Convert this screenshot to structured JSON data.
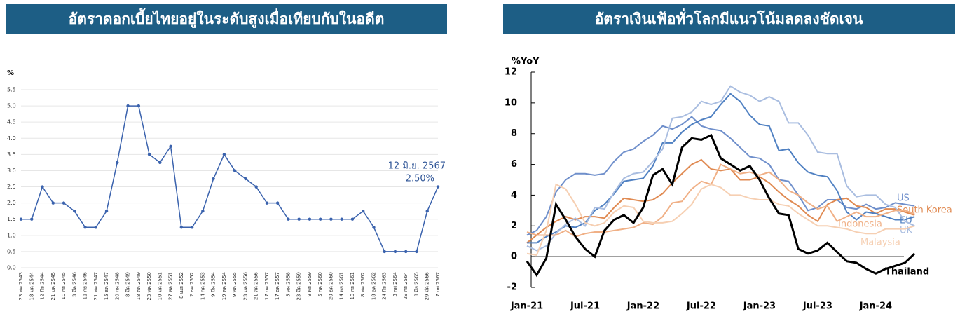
{
  "chart_data": [
    {
      "type": "line",
      "title": "อัตราดอกเบี้ยไทยอยู่ในระดับสูงเมื่อเทียบกับในอดีต",
      "ylabel": "%",
      "categories": [
        "23 พค 2543",
        "18 มค 2544",
        "12 มิย 2544",
        "21 มค 2545",
        "10 กย 2545",
        "3 มีค 2546",
        "11 กย 2546",
        "21 พค 2547",
        "15 ธค 2547",
        "20 กค 2548",
        "8 มีค 2549",
        "18 ตค 2549",
        "23 พค 2550",
        "10 มค 2551",
        "27 สค 2551",
        "8 เมย 2552",
        "2 ธค 2552",
        "14 กค 2553",
        "9 มีค 2554",
        "19 ตค 2554",
        "9 พค 2555",
        "23 มค 2556",
        "21 สค 2556",
        "17 กค 2557",
        "17 ธค 2557",
        "5 สค 2558",
        "23 มีค 2559",
        "9 พย 2559",
        "5 กค 2560",
        "20 ธค 2560",
        "14 พย 2561",
        "19 กย 2561",
        "8 พค 2562",
        "18 ธค 2562",
        "24 มิย 2563",
        "3 กพ 2564",
        "29 กย 2564",
        "8 มิย 2565",
        "29 มีค 2566",
        "7 กพ 2567"
      ],
      "values": [
        1.5,
        1.5,
        2.5,
        2.0,
        2.0,
        1.75,
        1.25,
        1.25,
        1.75,
        3.25,
        5.0,
        5.0,
        3.5,
        3.25,
        3.75,
        1.25,
        1.25,
        1.75,
        2.75,
        3.5,
        3.0,
        2.75,
        2.5,
        2.0,
        2.0,
        1.5,
        1.5,
        1.5,
        1.5,
        1.5,
        1.5,
        1.5,
        1.75,
        1.25,
        0.5,
        0.5,
        0.5,
        0.5,
        1.75,
        2.5
      ],
      "color": "#3a62ad",
      "ylim": [
        0,
        5.5
      ],
      "yticks": [
        {
          "value": 0,
          "label": "0.0"
        },
        0.5,
        {
          "value": 1,
          "label": "1.0"
        },
        1.5,
        {
          "value": 2,
          "label": "2.0"
        },
        2.5,
        {
          "value": 3,
          "label": "3.0"
        },
        3.5,
        {
          "value": 4,
          "label": "4.0"
        },
        4.5,
        {
          "value": 5,
          "label": "5.0"
        },
        5.5
      ],
      "grid": true,
      "annotations": [
        "12 มิ.ย. 2567",
        "2.50%"
      ]
    },
    {
      "type": "line",
      "title": "อัตราเงินเฟ้อทั่วโลกมีแนวโน้มลดลงชัดเจน",
      "ylabel": "%YoY",
      "categories": [
        "Jan-21",
        null,
        null,
        null,
        null,
        null,
        "Jul-21",
        null,
        null,
        null,
        null,
        null,
        "Jan-22",
        null,
        null,
        null,
        null,
        null,
        "Jul-22",
        null,
        null,
        null,
        null,
        null,
        "Jan-23",
        null,
        null,
        null,
        null,
        null,
        "Jul-23",
        null,
        null,
        null,
        null,
        null,
        "Jan-24",
        null,
        null,
        null,
        null
      ],
      "ylim": [
        -2,
        12
      ],
      "yticks": [
        -2,
        0,
        2,
        4,
        6,
        8,
        10,
        12
      ],
      "grid": false,
      "series": [
        {
          "name": "US",
          "color": "#6f8fcb",
          "values": [
            1.4,
            1.7,
            2.6,
            4.2,
            5.0,
            5.4,
            5.4,
            5.3,
            5.4,
            6.2,
            6.8,
            7.0,
            7.5,
            7.9,
            8.5,
            8.3,
            8.6,
            9.1,
            8.5,
            8.3,
            8.2,
            7.7,
            7.1,
            6.5,
            6.4,
            6.0,
            5.0,
            4.9,
            4.0,
            3.0,
            3.2,
            3.7,
            3.7,
            3.2,
            3.1,
            3.4,
            3.1,
            3.2,
            3.5,
            3.4,
            3.3
          ]
        },
        {
          "name": "South Korea",
          "color": "#e08a52",
          "values": [
            0.9,
            1.4,
            1.9,
            2.3,
            2.6,
            2.4,
            2.6,
            2.6,
            2.5,
            3.2,
            3.8,
            3.7,
            3.6,
            3.7,
            4.1,
            4.8,
            5.4,
            6.0,
            6.3,
            5.7,
            5.6,
            5.7,
            5.0,
            5.0,
            5.2,
            4.8,
            4.2,
            3.7,
            3.3,
            2.7,
            2.3,
            3.4,
            3.7,
            3.8,
            3.3,
            3.2,
            2.8,
            3.1,
            3.1,
            2.9,
            2.7
          ]
        },
        {
          "name": "EU",
          "color": "#4f80c2",
          "values": [
            0.9,
            0.9,
            1.3,
            1.6,
            2.0,
            1.9,
            2.2,
            3.0,
            3.4,
            4.1,
            4.9,
            5.0,
            5.1,
            5.9,
            7.4,
            7.4,
            8.1,
            8.6,
            8.9,
            9.1,
            9.9,
            10.6,
            10.1,
            9.2,
            8.6,
            8.5,
            6.9,
            7.0,
            6.1,
            5.5,
            5.3,
            5.2,
            4.3,
            2.9,
            2.4,
            2.9,
            2.8,
            2.6,
            2.4,
            2.4,
            2.6
          ]
        },
        {
          "name": "UK",
          "color": "#a9bde0",
          "values": [
            0.7,
            0.4,
            0.7,
            1.5,
            2.1,
            2.5,
            2.0,
            3.2,
            3.1,
            4.2,
            5.1,
            5.4,
            5.5,
            6.2,
            7.0,
            9.0,
            9.1,
            9.4,
            10.1,
            9.9,
            10.1,
            11.1,
            10.7,
            10.5,
            10.1,
            10.4,
            10.1,
            8.7,
            8.7,
            7.9,
            6.8,
            6.7,
            6.7,
            4.6,
            3.9,
            4.0,
            4.0,
            3.4,
            3.2,
            2.3,
            2.0
          ]
        },
        {
          "name": "Indonesia",
          "color": "#f0b086",
          "values": [
            1.6,
            1.4,
            1.4,
            1.4,
            1.7,
            1.3,
            1.5,
            1.6,
            1.6,
            1.7,
            1.8,
            1.9,
            2.2,
            2.1,
            2.6,
            3.5,
            3.6,
            4.4,
            4.9,
            4.7,
            6.0,
            5.7,
            5.4,
            5.5,
            5.3,
            5.5,
            5.0,
            4.3,
            4.0,
            3.5,
            3.1,
            3.3,
            2.3,
            2.6,
            2.9,
            2.6,
            2.6,
            2.8,
            3.0,
            3.0,
            2.8
          ]
        },
        {
          "name": "Malaysia",
          "color": "#f6cfb2",
          "values": [
            0.2,
            0.1,
            1.7,
            4.7,
            4.4,
            3.4,
            2.2,
            2.0,
            2.2,
            2.9,
            3.3,
            3.2,
            2.3,
            2.2,
            2.2,
            2.3,
            2.8,
            3.4,
            4.4,
            4.7,
            4.5,
            4.0,
            4.0,
            3.8,
            3.7,
            3.7,
            3.4,
            3.3,
            2.8,
            2.4,
            2.0,
            2.0,
            1.9,
            1.8,
            1.6,
            1.5,
            1.5,
            1.8,
            1.8,
            1.8,
            2.0
          ]
        },
        {
          "name": "Thailand",
          "color": "#000000",
          "values": [
            -0.3,
            -1.2,
            -0.1,
            3.4,
            2.4,
            1.3,
            0.5,
            0.0,
            1.7,
            2.4,
            2.7,
            2.2,
            3.2,
            5.3,
            5.7,
            4.7,
            7.1,
            7.7,
            7.6,
            7.9,
            6.4,
            6.0,
            5.6,
            5.9,
            5.0,
            3.8,
            2.8,
            2.7,
            0.5,
            0.2,
            0.4,
            0.9,
            0.3,
            -0.3,
            -0.4,
            -0.8,
            -1.1,
            -0.8,
            -0.6,
            -0.4,
            0.2
          ]
        }
      ]
    }
  ]
}
